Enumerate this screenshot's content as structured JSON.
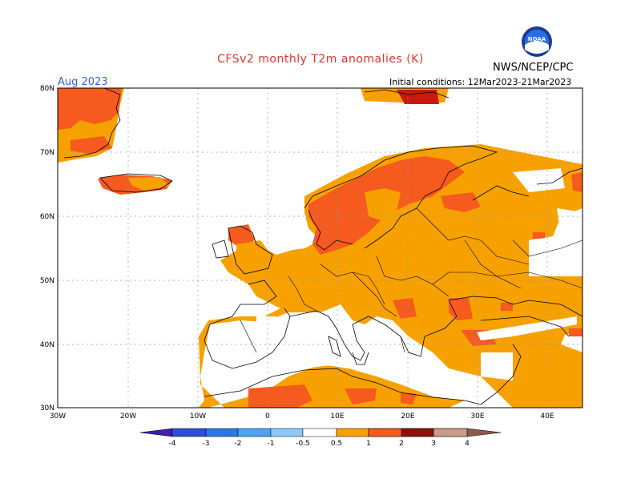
{
  "header": {
    "title": "CFSv2 monthly T2m anomalies (K)",
    "agency": "NWS/NCEP/CPC",
    "month": "Aug 2023",
    "initial_conditions": "Initial conditions: 12Mar2023-21Mar2023",
    "logo_text": "NOAA"
  },
  "axes": {
    "lat_labels": [
      "80N",
      "70N",
      "60N",
      "50N",
      "40N",
      "30N"
    ],
    "lon_labels": [
      "30W",
      "20W",
      "10W",
      "0",
      "10E",
      "20E",
      "30E",
      "40E"
    ]
  },
  "colorbar": {
    "tick_labels": [
      "-4",
      "-3",
      "-2",
      "-1",
      "-0.5",
      "0.5",
      "1",
      "2",
      "3",
      "4"
    ],
    "colors": [
      "#3b1fb0",
      "#2c4fd8",
      "#2878e6",
      "#4ea3f5",
      "#8cc8fa",
      "#ffffff",
      "#f7a100",
      "#f55a1e",
      "#c81a0e",
      "#8b0f0a",
      "#c9998a",
      "#8a5a4a"
    ]
  },
  "anomaly_colors": {
    "weak_warm": "#f7a100",
    "moderate_warm": "#f55a1e",
    "strong_warm": "#c81a0e",
    "weak_cold": "#8cc8fa"
  }
}
